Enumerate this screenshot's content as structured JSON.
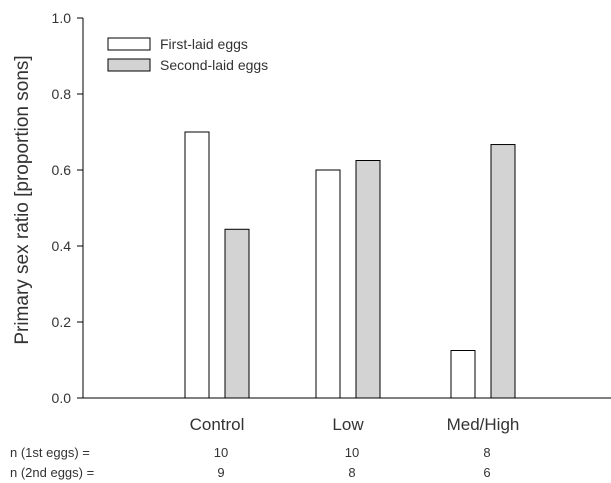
{
  "chart_data": {
    "type": "bar",
    "categories": [
      "Control",
      "Low",
      "Med/High"
    ],
    "series": [
      {
        "name": "First-laid eggs",
        "values": [
          0.7,
          0.6,
          0.125
        ],
        "color": "#ffffff"
      },
      {
        "name": "Second-laid eggs",
        "values": [
          0.444,
          0.625,
          0.667
        ],
        "color": "#d3d3d3"
      }
    ],
    "ylabel": "Primary sex ratio [proportion sons]",
    "ylim": [
      0,
      1.0
    ],
    "yticks": [
      "0.0",
      "0.2",
      "0.4",
      "0.6",
      "0.8",
      "1.0"
    ],
    "ytick_values": [
      0,
      0.2,
      0.4,
      0.6,
      0.8,
      1.0
    ],
    "legend_position": "top-left",
    "grid": false
  },
  "sample_sizes": {
    "first_label": "n (1st eggs) =",
    "second_label": "n (2nd eggs) =",
    "first_values": [
      "10",
      "10",
      "8"
    ],
    "second_values": [
      "9",
      "8",
      "6"
    ]
  }
}
